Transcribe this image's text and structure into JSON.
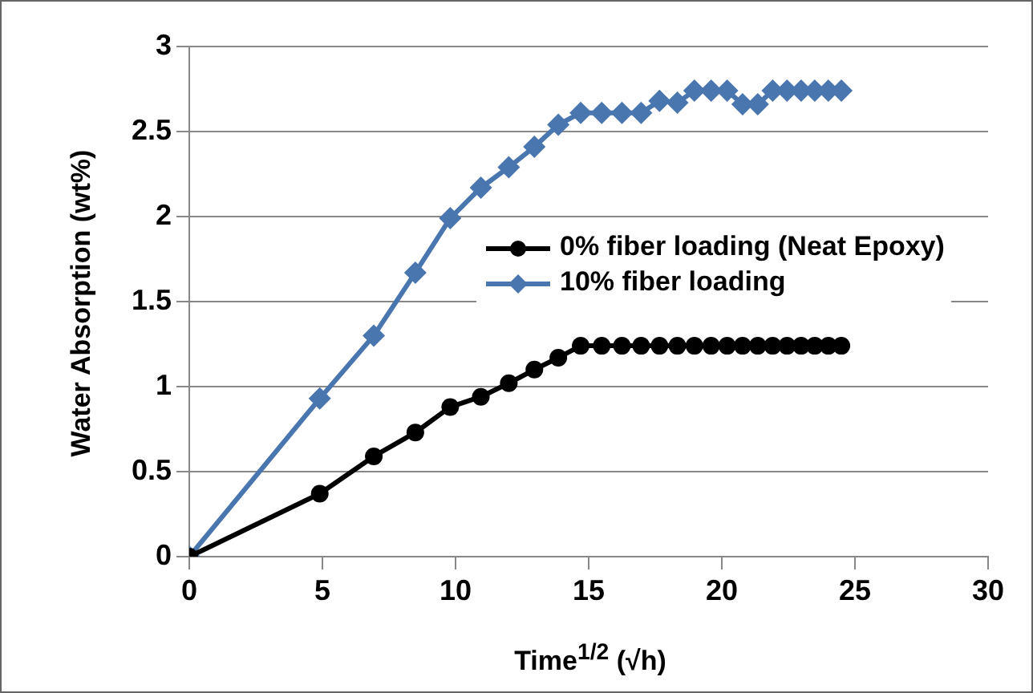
{
  "chart_data": {
    "type": "line",
    "xlabel": "Time$^{1/2}$ (√h)",
    "ylabel": "Water Absorption (wt%)",
    "x": [
      0,
      4.9,
      6.93,
      8.49,
      9.8,
      10.95,
      12,
      12.96,
      13.86,
      14.7,
      15.49,
      16.25,
      16.97,
      17.66,
      18.33,
      18.97,
      19.6,
      20.2,
      20.78,
      21.35,
      21.91,
      22.45,
      22.98,
      23.49,
      24,
      24.49
    ],
    "series": [
      {
        "name": "0% fiber loading (Neat Epoxy)",
        "color": "#000000",
        "marker": "circle",
        "values": [
          0,
          0.37,
          0.59,
          0.73,
          0.88,
          0.94,
          1.02,
          1.1,
          1.17,
          1.24,
          1.24,
          1.24,
          1.24,
          1.24,
          1.24,
          1.24,
          1.24,
          1.24,
          1.24,
          1.24,
          1.24,
          1.24,
          1.24,
          1.24,
          1.24,
          1.24
        ]
      },
      {
        "name": "10% fiber loading",
        "color": "#4a76b0",
        "marker": "diamond",
        "values": [
          0,
          0.93,
          1.3,
          1.67,
          1.99,
          2.17,
          2.29,
          2.41,
          2.54,
          2.61,
          2.61,
          2.61,
          2.61,
          2.68,
          2.67,
          2.74,
          2.74,
          2.74,
          2.66,
          2.66,
          2.74,
          2.74,
          2.74,
          2.74,
          2.74,
          2.74
        ]
      }
    ],
    "xlim": [
      0,
      30
    ],
    "xticks": [
      0,
      5,
      10,
      15,
      20,
      25,
      30
    ],
    "ylim": [
      0,
      3
    ],
    "yticks": [
      0,
      0.5,
      1,
      1.5,
      2,
      2.5,
      3
    ],
    "grid": "y",
    "legend": "right"
  }
}
